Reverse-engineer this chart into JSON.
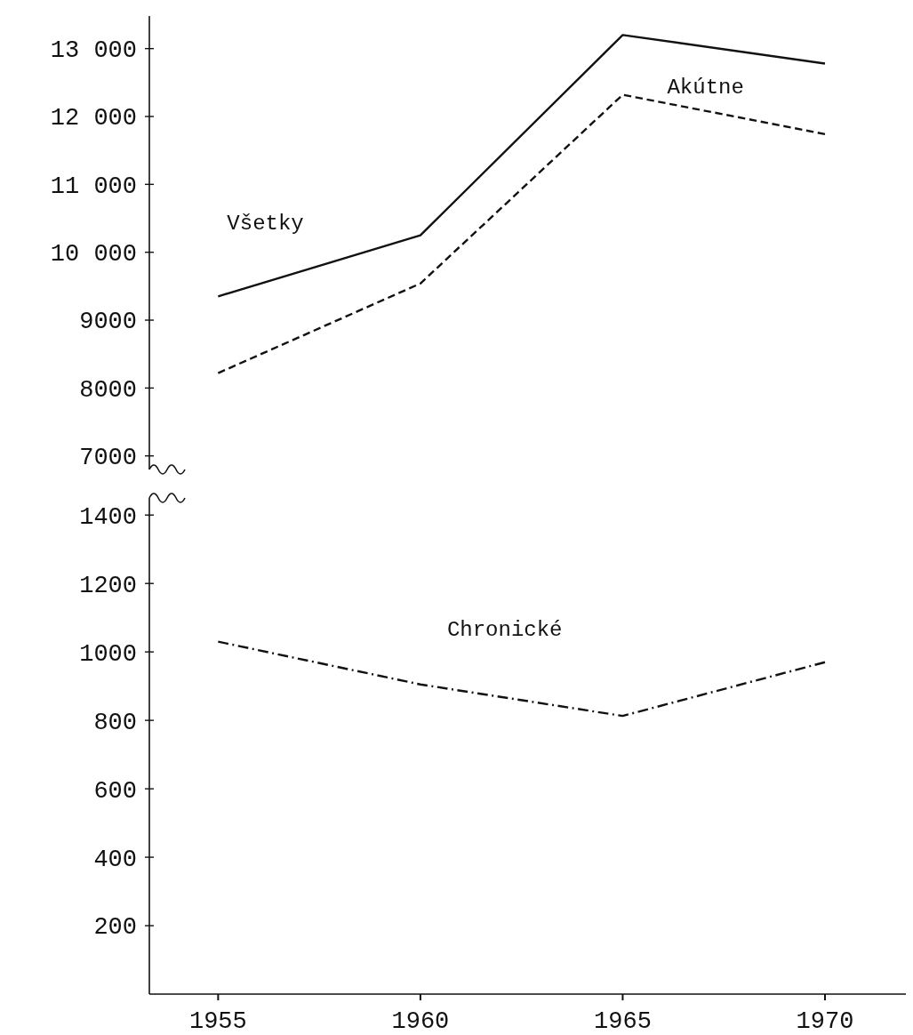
{
  "chart_data": [
    {
      "type": "line",
      "x": [
        1955,
        1960,
        1965,
        1970
      ],
      "xlim": [
        1953.3,
        1972
      ],
      "ylim": [
        6800,
        13480
      ],
      "yticks": [
        {
          "value": 7000,
          "label": "7000"
        },
        {
          "value": 8000,
          "label": "8000"
        },
        {
          "value": 9000,
          "label": "9000"
        },
        {
          "value": 10000,
          "label": "10 000"
        },
        {
          "value": 11000,
          "label": "11 000"
        },
        {
          "value": 12000,
          "label": "12 000"
        },
        {
          "value": 13000,
          "label": "13 000"
        }
      ],
      "tick_labels": "y",
      "grid": false,
      "series": [
        {
          "name": "Všetky",
          "color": "#111111",
          "line_style": "solid",
          "values": [
            9350,
            10250,
            13200,
            12780
          ]
        },
        {
          "name": "Akútne",
          "color": "#111111",
          "line_style": "dashed",
          "values": [
            8220,
            9540,
            12320,
            11740
          ]
        }
      ]
    },
    {
      "type": "line",
      "x": [
        1955,
        1960,
        1965,
        1970
      ],
      "xlim": [
        1953.3,
        1972
      ],
      "xticks": [
        1955,
        1960,
        1965,
        1970
      ],
      "ylim": [
        0,
        1450
      ],
      "yticks": [
        200,
        400,
        600,
        800,
        1000,
        1200,
        1400
      ],
      "grid": false,
      "series": [
        {
          "name": "Chronické",
          "color": "#111111",
          "line_style": "dashdot",
          "values": [
            1030,
            905,
            813,
            970
          ]
        }
      ]
    }
  ]
}
